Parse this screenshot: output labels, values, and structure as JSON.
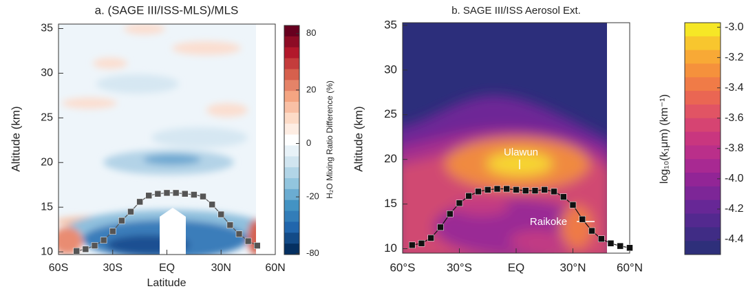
{
  "chart_data": [
    {
      "type": "contour-line",
      "title": "a. (SAGE III/ISS-MLS)/MLS",
      "xlabel": "Latitude",
      "ylabel": "Altitude (km)",
      "xlim": [
        -60,
        60
      ],
      "xticks": [
        {
          "value": -60,
          "label": "60S"
        },
        {
          "value": -30,
          "label": "30S"
        },
        {
          "value": 0,
          "label": "EQ"
        },
        {
          "value": 30,
          "label": "30N"
        },
        {
          "value": 60,
          "label": "60N"
        }
      ],
      "ylim": [
        9.7,
        35.5
      ],
      "yticks": [
        10,
        15,
        20,
        25,
        30,
        35
      ],
      "series": [
        {
          "color": "#555555",
          "x": [
            -50,
            -45,
            -40,
            -35,
            -30,
            -25,
            -20,
            -15,
            -10,
            -5,
            0,
            5,
            10,
            15,
            20,
            25,
            30,
            35,
            40,
            45,
            50
          ],
          "values": [
            10.1,
            10.3,
            10.7,
            11.3,
            12.3,
            13.5,
            14.5,
            15.6,
            16.3,
            16.5,
            16.6,
            16.6,
            16.5,
            16.4,
            16.2,
            15.3,
            14.2,
            13.0,
            12.0,
            11.2,
            10.7
          ]
        }
      ],
      "colorbar": {
        "label": "H₂O Mixing Ratio Difference (%)",
        "scale": "symlog",
        "lim": [
          -82,
          95
        ],
        "ticks": [
          80,
          20,
          0,
          -20,
          -80
        ]
      }
    },
    {
      "type": "contour-line",
      "title": "b.  SAGE III/ISS Aerosol Ext.",
      "ylabel": "Altitude (km)",
      "xlim": [
        -60,
        60
      ],
      "xticks": [
        {
          "value": -60,
          "label": "60°S"
        },
        {
          "value": -30,
          "label": "30°S"
        },
        {
          "value": 0,
          "label": "EQ"
        },
        {
          "value": 30,
          "label": "30°N"
        },
        {
          "value": 60,
          "label": "60°N"
        }
      ],
      "ylim": [
        9.5,
        35.3
      ],
      "yticks": [
        10,
        15,
        20,
        25,
        30,
        35
      ],
      "series": [
        {
          "color": "#111111",
          "x": [
            -55,
            -50,
            -45,
            -40,
            -35,
            -30,
            -25,
            -20,
            -15,
            -10,
            -5,
            0,
            5,
            10,
            15,
            20,
            25,
            30,
            35,
            40,
            45,
            50,
            55,
            60
          ],
          "values": [
            10.4,
            10.6,
            11.2,
            12.4,
            13.9,
            15.1,
            15.9,
            16.4,
            16.6,
            16.7,
            16.7,
            16.6,
            16.5,
            16.5,
            16.6,
            16.4,
            15.8,
            14.9,
            13.3,
            12.0,
            11.1,
            10.6,
            10.3,
            10.1
          ]
        }
      ],
      "annotations": [
        "Ulawun",
        "Raikoke"
      ],
      "colorbar": {
        "label": "log₁₀(k₁μm) (km⁻¹)",
        "scale": "linear",
        "lim": [
          -4.5,
          -2.97
        ],
        "ticks": [
          {
            "value": -3,
            "label": "-3.0"
          },
          -3.2,
          -3.4,
          -3.6,
          -3.8,
          {
            "value": -4,
            "label": "-4.0"
          },
          -4.2,
          -4.4
        ]
      }
    }
  ]
}
